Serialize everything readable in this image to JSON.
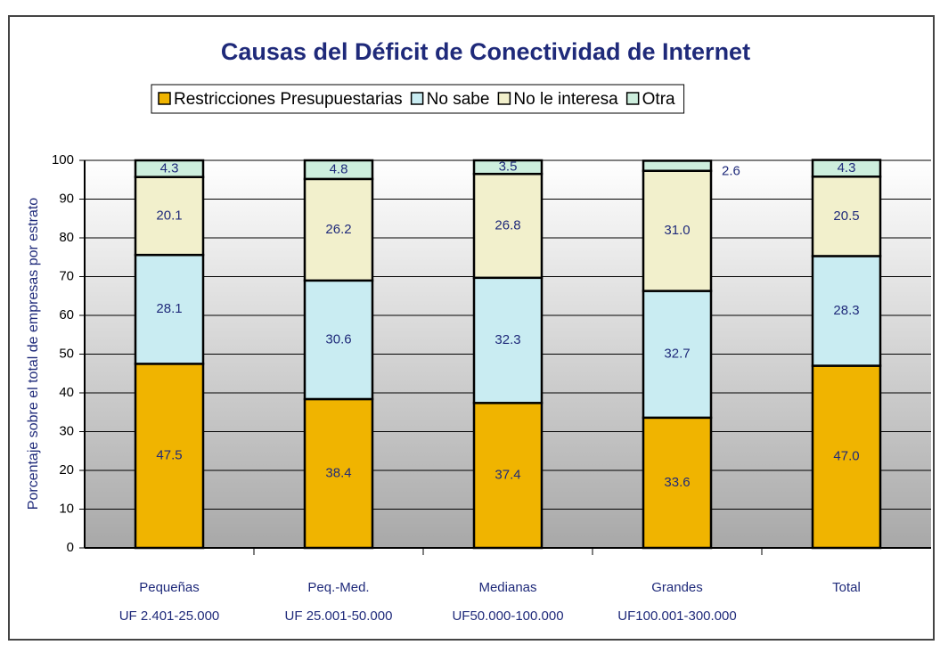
{
  "chart_data": {
    "type": "stacked_bar",
    "title": "Causas del Déficit de Conectividad de Internet",
    "y_label": "Porcentaje sobre el total de empresas por estrato",
    "categories": [
      [
        "Pequeñas",
        "UF 2.401-25.000"
      ],
      [
        "Peq.-Med.",
        "UF 25.001-50.000"
      ],
      [
        "Medianas",
        "UF50.000-100.000"
      ],
      [
        "Grandes",
        "UF100.001-300.000"
      ],
      [
        "Total"
      ]
    ],
    "series": [
      {
        "name": "Restricciones Presupuestarias",
        "color": "#f0b400",
        "values": [
          47.5,
          38.4,
          37.4,
          33.6,
          47.0
        ],
        "value_labels": [
          "47.5",
          "38.4",
          "37.4",
          "33.6",
          "47.0"
        ]
      },
      {
        "name": "No sabe",
        "color": "#c9ecf2",
        "values": [
          28.1,
          30.6,
          32.3,
          32.7,
          28.3
        ]
      },
      {
        "name": "No le interesa",
        "color": "#f2f0cc",
        "values": [
          20.1,
          26.2,
          26.8,
          31.0,
          20.5
        ],
        "value_labels": [
          "20.1",
          "26.2",
          "26.8",
          "31.0",
          "20.5"
        ]
      },
      {
        "name": "Otra",
        "color": "#cdeedd",
        "values": [
          4.3,
          4.8,
          3.5,
          2.6,
          4.3
        ]
      }
    ],
    "ylim": [
      0,
      100
    ],
    "yticks": [
      0,
      10,
      20,
      30,
      40,
      50,
      60,
      70,
      80,
      90,
      100
    ],
    "grid": true
  }
}
